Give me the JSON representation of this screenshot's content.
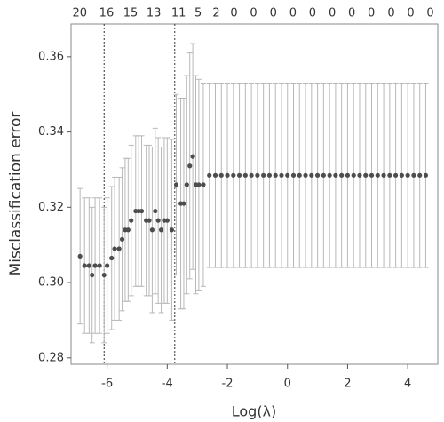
{
  "chart_data": {
    "type": "errorbar-scatter",
    "ylabel": "Misclassification error",
    "xlabel": "Log(λ)",
    "xlim": [
      -7.2,
      5.0
    ],
    "ylim": [
      0.2783,
      0.3687
    ],
    "xticks": [
      -6,
      -4,
      -2,
      0,
      2,
      4
    ],
    "yticks": [
      0.28,
      {
        "value": 0.3,
        "label": "0.30"
      },
      0.32,
      0.34,
      0.36
    ],
    "top_ticks": [
      {
        "value": -6.91,
        "label": "20"
      },
      {
        "value": -6.02,
        "label": "16"
      },
      {
        "value": -5.22,
        "label": "15"
      },
      {
        "value": -4.45,
        "label": "13"
      },
      {
        "value": -3.62,
        "label": "11"
      },
      {
        "value": -2.97,
        "label": "5"
      },
      {
        "value": -2.37,
        "label": "2"
      },
      {
        "value": -1.78,
        "label": "0"
      },
      {
        "value": -1.13,
        "label": "0"
      },
      {
        "value": -0.47,
        "label": "0"
      },
      {
        "value": 0.18,
        "label": "0"
      },
      {
        "value": 0.83,
        "label": "0"
      },
      {
        "value": 1.49,
        "label": "0"
      },
      {
        "value": 2.14,
        "label": "0"
      },
      {
        "value": 2.79,
        "label": "0"
      },
      {
        "value": 3.45,
        "label": "0"
      },
      {
        "value": 4.1,
        "label": "0"
      },
      {
        "value": 4.75,
        "label": "0"
      }
    ],
    "vlines": [
      -6.1,
      -3.75
    ],
    "point_color": "#4d4d4d",
    "bar_color": "#b8b8b8",
    "x": [
      -6.9,
      -6.75,
      -6.6,
      -6.5,
      -6.4,
      -6.25,
      -6.1,
      -6.0,
      -5.85,
      -5.75,
      -5.6,
      -5.5,
      -5.4,
      -5.3,
      -5.2,
      -5.05,
      -4.95,
      -4.85,
      -4.7,
      -4.6,
      -4.5,
      -4.4,
      -4.3,
      -4.2,
      -4.1,
      -4.0,
      -3.85,
      -3.7,
      -3.55,
      -3.45,
      -3.35,
      -3.25,
      -3.15,
      -3.05,
      -2.95,
      -2.8,
      -2.6,
      -2.4,
      -2.2,
      -2.0,
      -1.8,
      -1.6,
      -1.4,
      -1.2,
      -1.0,
      -0.8,
      -0.6,
      -0.4,
      -0.2,
      0.0,
      0.2,
      0.4,
      0.6,
      0.8,
      1.0,
      1.2,
      1.4,
      1.6,
      1.8,
      2.0,
      2.2,
      2.4,
      2.6,
      2.8,
      3.0,
      3.2,
      3.4,
      3.6,
      3.8,
      4.0,
      4.2,
      4.4,
      4.6
    ],
    "values": [
      0.307,
      0.3045,
      0.3045,
      0.302,
      0.3045,
      0.3045,
      0.302,
      0.3045,
      0.3065,
      0.309,
      0.309,
      0.3115,
      0.314,
      0.314,
      0.3165,
      0.319,
      0.319,
      0.319,
      0.3165,
      0.3165,
      0.314,
      0.319,
      0.3165,
      0.314,
      0.3165,
      0.3165,
      0.314,
      0.326,
      0.321,
      0.321,
      0.326,
      0.331,
      0.3335,
      0.326,
      0.326,
      0.326,
      0.3285,
      0.3285,
      0.3285,
      0.3285,
      0.3285,
      0.3285,
      0.3285,
      0.3285,
      0.3285,
      0.3285,
      0.3285,
      0.3285,
      0.3285,
      0.3285,
      0.3285,
      0.3285,
      0.3285,
      0.3285,
      0.3285,
      0.3285,
      0.3285,
      0.3285,
      0.3285,
      0.3285,
      0.3285,
      0.3285,
      0.3285,
      0.3285,
      0.3285,
      0.3285,
      0.3285,
      0.3285,
      0.3285,
      0.3285,
      0.3285,
      0.3285,
      0.3285
    ],
    "errors": [
      0.018,
      0.018,
      0.018,
      0.018,
      0.018,
      0.018,
      0.018,
      0.018,
      0.019,
      0.019,
      0.019,
      0.019,
      0.019,
      0.019,
      0.02,
      0.02,
      0.02,
      0.02,
      0.02,
      0.02,
      0.022,
      0.022,
      0.022,
      0.022,
      0.022,
      0.022,
      0.024,
      0.024,
      0.028,
      0.028,
      0.029,
      0.03,
      0.03,
      0.029,
      0.028,
      0.027,
      0.0245,
      0.0245,
      0.0245,
      0.0245,
      0.0245,
      0.0245,
      0.0245,
      0.0245,
      0.0245,
      0.0245,
      0.0245,
      0.0245,
      0.0245,
      0.0245,
      0.0245,
      0.0245,
      0.0245,
      0.0245,
      0.0245,
      0.0245,
      0.0245,
      0.0245,
      0.0245,
      0.0245,
      0.0245,
      0.0245,
      0.0245,
      0.0245,
      0.0245,
      0.0245,
      0.0245,
      0.0245,
      0.0245,
      0.0245,
      0.0245,
      0.0245,
      0.0245
    ]
  }
}
